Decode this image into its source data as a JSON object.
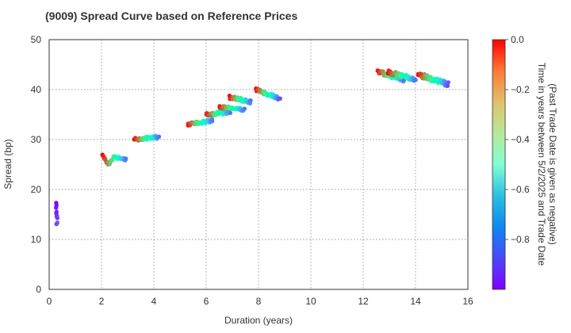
{
  "chart_data": {
    "type": "scatter",
    "title": "(9009)   Spread Curve based on Reference Prices",
    "xlabel": "Duration (years)",
    "ylabel": "Spread (bp)",
    "xlim": [
      0,
      16
    ],
    "ylim": [
      0,
      50
    ],
    "x_ticks": [
      "0",
      "2",
      "4",
      "6",
      "8",
      "10",
      "12",
      "14",
      "16"
    ],
    "y_ticks": [
      "0",
      "10",
      "20",
      "30",
      "40",
      "50"
    ],
    "grid": true,
    "colorbar": {
      "label_line1": "Time in years between 5/2/2025 and Trade Date",
      "label_line2": "(Past Trade Date is given as negative)",
      "range": [
        -1.0,
        0.0
      ],
      "ticks": [
        "0.0",
        "−0.2",
        "−0.4",
        "−0.6",
        "−0.8"
      ],
      "colormap": "rainbow"
    },
    "clusters": [
      {
        "name": "bond-1",
        "x_start": 0.25,
        "x_end": 0.3,
        "y_start": 17.0,
        "y_end": 13.0,
        "noise": 1.0,
        "n": 10,
        "t_start": -1.0,
        "t_end": -0.9
      },
      {
        "name": "bond-2",
        "x_start": 2.05,
        "x_end": 2.95,
        "y_start": 27.0,
        "y_end": 26.0,
        "noise": 0.5,
        "n": 40,
        "t_start": 0.0,
        "t_end": -0.85,
        "dip": -1.5
      },
      {
        "name": "bond-3",
        "x_start": 3.25,
        "x_end": 4.2,
        "y_start": 30.0,
        "y_end": 30.5,
        "noise": 0.7,
        "n": 40,
        "t_start": 0.0,
        "t_end": -0.85
      },
      {
        "name": "bond-4",
        "x_start": 5.3,
        "x_end": 6.25,
        "y_start": 33.0,
        "y_end": 33.8,
        "noise": 0.6,
        "n": 40,
        "t_start": 0.0,
        "t_end": -0.85
      },
      {
        "name": "bond-5",
        "x_start": 6.0,
        "x_end": 6.9,
        "y_start": 35.0,
        "y_end": 35.5,
        "noise": 0.7,
        "n": 40,
        "t_start": 0.0,
        "t_end": -0.85
      },
      {
        "name": "bond-6",
        "x_start": 6.5,
        "x_end": 7.45,
        "y_start": 36.5,
        "y_end": 36.0,
        "noise": 0.6,
        "n": 35,
        "t_start": 0.0,
        "t_end": -0.85
      },
      {
        "name": "bond-7",
        "x_start": 6.9,
        "x_end": 7.7,
        "y_start": 38.5,
        "y_end": 37.5,
        "noise": 0.7,
        "n": 35,
        "t_start": 0.0,
        "t_end": -0.85
      },
      {
        "name": "bond-8",
        "x_start": 7.9,
        "x_end": 8.8,
        "y_start": 40.0,
        "y_end": 38.2,
        "noise": 0.7,
        "n": 40,
        "t_start": 0.0,
        "t_end": -0.9
      },
      {
        "name": "bond-9",
        "x_start": 12.55,
        "x_end": 13.55,
        "y_start": 43.5,
        "y_end": 42.0,
        "noise": 0.8,
        "n": 40,
        "t_start": 0.0,
        "t_end": -0.85
      },
      {
        "name": "bond-10",
        "x_start": 12.95,
        "x_end": 14.0,
        "y_start": 43.5,
        "y_end": 42.0,
        "noise": 0.8,
        "n": 40,
        "t_start": 0.0,
        "t_end": -0.85
      },
      {
        "name": "bond-11",
        "x_start": 14.1,
        "x_end": 15.25,
        "y_start": 43.0,
        "y_end": 41.0,
        "noise": 0.9,
        "n": 55,
        "t_start": 0.0,
        "t_end": -0.9
      }
    ]
  }
}
